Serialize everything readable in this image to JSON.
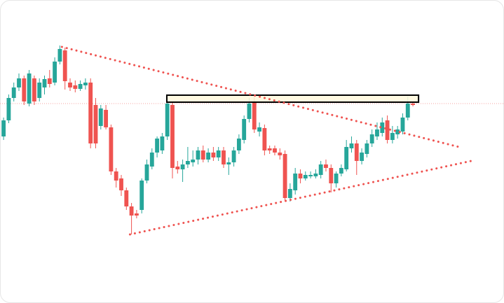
{
  "chart_data": {
    "type": "candlestick",
    "x": [
      0,
      1,
      2,
      3,
      4,
      5,
      6,
      7,
      8,
      9,
      10,
      11,
      12,
      13,
      14,
      15,
      16,
      17,
      18,
      19,
      20,
      21,
      22,
      23,
      24,
      25,
      26,
      27,
      28,
      29,
      30,
      31,
      32,
      33,
      34,
      35,
      36,
      37,
      38,
      39,
      40,
      41,
      42,
      43,
      44,
      45,
      46,
      47,
      48,
      49,
      50,
      51,
      52,
      53,
      54,
      55,
      56,
      57,
      58,
      59,
      60,
      61,
      62,
      63,
      64,
      65,
      66,
      67,
      68,
      69,
      70,
      71,
      72,
      73,
      74,
      75,
      76,
      77,
      78,
      79,
      80
    ],
    "open": [
      238,
      261,
      293,
      308,
      321,
      285,
      321,
      293,
      308,
      321,
      315,
      345,
      361,
      315,
      311,
      306,
      311,
      315,
      283,
      253,
      276,
      251,
      188,
      178,
      161,
      138,
      128,
      133,
      175,
      195,
      215,
      218,
      238,
      283,
      195,
      191,
      198,
      201,
      205,
      218,
      205,
      215,
      208,
      218,
      198,
      201,
      218,
      233,
      263,
      288,
      245,
      250,
      221,
      221,
      215,
      213,
      150,
      161,
      185,
      178,
      181,
      181,
      183,
      198,
      193,
      171,
      185,
      191,
      221,
      228,
      203,
      213,
      228,
      238,
      243,
      261,
      233,
      241,
      245,
      265,
      285
    ],
    "high": [
      265,
      298,
      315,
      328,
      325,
      333,
      325,
      321,
      325,
      333,
      351,
      368,
      365,
      321,
      318,
      318,
      321,
      321,
      293,
      283,
      283,
      255,
      193,
      183,
      165,
      143,
      133,
      178,
      205,
      221,
      238,
      243,
      293,
      288,
      203,
      205,
      223,
      218,
      223,
      225,
      221,
      223,
      223,
      223,
      208,
      223,
      241,
      268,
      293,
      295,
      258,
      255,
      225,
      225,
      221,
      218,
      171,
      193,
      191,
      188,
      188,
      191,
      203,
      205,
      198,
      188,
      198,
      233,
      238,
      233,
      221,
      233,
      248,
      258,
      265,
      268,
      253,
      253,
      271,
      295,
      288
    ],
    "low": [
      233,
      257,
      288,
      303,
      283,
      281,
      283,
      288,
      298,
      308,
      311,
      341,
      305,
      303,
      301,
      303,
      305,
      221,
      221,
      248,
      248,
      183,
      165,
      153,
      133,
      98,
      121,
      128,
      171,
      191,
      208,
      213,
      233,
      178,
      185,
      173,
      193,
      195,
      198,
      201,
      201,
      203,
      203,
      193,
      183,
      195,
      213,
      228,
      258,
      243,
      238,
      211,
      213,
      211,
      205,
      145,
      145,
      155,
      171,
      175,
      178,
      178,
      178,
      188,
      158,
      165,
      181,
      188,
      215,
      183,
      198,
      208,
      223,
      233,
      238,
      228,
      228,
      235,
      241,
      261,
      281
    ],
    "close": [
      261,
      293,
      308,
      321,
      288,
      328,
      288,
      315,
      320,
      313,
      345,
      363,
      317,
      308,
      306,
      313,
      315,
      228,
      228,
      278,
      251,
      188,
      175,
      161,
      138,
      125,
      125,
      175,
      198,
      215,
      235,
      238,
      285,
      193,
      191,
      198,
      203,
      205,
      218,
      205,
      215,
      208,
      218,
      198,
      201,
      218,
      235,
      263,
      285,
      248,
      251,
      218,
      218,
      215,
      211,
      150,
      163,
      185,
      178,
      183,
      183,
      185,
      198,
      193,
      171,
      185,
      193,
      223,
      228,
      203,
      215,
      228,
      241,
      248,
      258,
      233,
      243,
      248,
      265,
      285,
      283
    ],
    "up_color": "#26a69a",
    "down_color": "#ef5350",
    "xlim": [
      -0.7,
      97.8
    ],
    "ylim": [
      0,
      433
    ],
    "trendlines": [
      {
        "color": "#ef5350",
        "x": [
          11.4,
          89.0
        ],
        "y": [
          366,
          223
        ]
      },
      {
        "color": "#ef5350",
        "x": [
          24.7,
          91.4
        ],
        "y": [
          98,
          203
        ]
      }
    ],
    "reference_line": {
      "y": 285,
      "color": "#f4a3a0"
    },
    "zone": {
      "x": [
        31.9,
        81.1
      ],
      "y": [
        287,
        297
      ],
      "fill": "#fff8dc",
      "stroke": "#000000"
    }
  }
}
